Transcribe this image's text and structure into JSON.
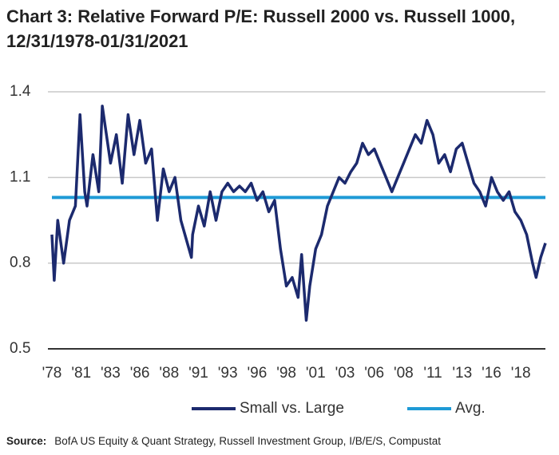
{
  "chart_data": {
    "type": "line",
    "title": [
      "Chart 3: Relative Forward P/E: Russell 2000 vs. Russell 1000,",
      "12/31/1978-01/31/2021"
    ],
    "xlim": [
      1979,
      2021.1
    ],
    "xticks": [
      {
        "value": 1979,
        "label": "'78"
      },
      {
        "value": 1981.5,
        "label": "'81"
      },
      {
        "value": 1984,
        "label": "'83"
      },
      {
        "value": 1986.5,
        "label": "'86"
      },
      {
        "value": 1989,
        "label": "'88"
      },
      {
        "value": 1991.5,
        "label": "'91"
      },
      {
        "value": 1994,
        "label": "'93"
      },
      {
        "value": 1996.5,
        "label": "'96"
      },
      {
        "value": 1999,
        "label": "'98"
      },
      {
        "value": 2001.5,
        "label": "'01"
      },
      {
        "value": 2004,
        "label": "'03"
      },
      {
        "value": 2006.5,
        "label": "'06"
      },
      {
        "value": 2009,
        "label": "'08"
      },
      {
        "value": 2011.5,
        "label": "'11"
      },
      {
        "value": 2014,
        "label": "'13"
      },
      {
        "value": 2016.5,
        "label": "'16"
      },
      {
        "value": 2019,
        "label": "'18"
      }
    ],
    "ylim": [
      0.5,
      1.4
    ],
    "yticks": [
      0.5,
      0.8,
      1.1,
      1.4
    ],
    "grid": true,
    "series": [
      {
        "name": "Small vs. Large",
        "color": "#1c2a6e",
        "x": [
          1979,
          1979.2,
          1979.5,
          1980,
          1980.5,
          1981,
          1981.4,
          1981.8,
          1982,
          1982.5,
          1983,
          1983.3,
          1984,
          1984.5,
          1985,
          1985.5,
          1986,
          1986.5,
          1987,
          1987.5,
          1988,
          1988.5,
          1989,
          1989.5,
          1990,
          1990.9,
          1991,
          1991.5,
          1992,
          1992.5,
          1993,
          1993.5,
          1994,
          1994.5,
          1995,
          1995.5,
          1996,
          1996.5,
          1997,
          1997.5,
          1998,
          1998.5,
          1999,
          1999.5,
          2000,
          2000.3,
          2000.7,
          2001,
          2001.5,
          2002,
          2002.5,
          2003,
          2003.5,
          2004,
          2004.5,
          2005,
          2005.5,
          2006,
          2006.5,
          2007,
          2007.5,
          2008,
          2008.5,
          2009,
          2009.5,
          2010,
          2010.5,
          2011,
          2011.5,
          2012,
          2012.5,
          2013,
          2013.5,
          2014,
          2014.5,
          2015,
          2015.5,
          2016,
          2016.5,
          2017,
          2017.5,
          2018,
          2018.5,
          2019,
          2019.5,
          2020,
          2020.3,
          2020.7,
          2021.1
        ],
        "values": [
          0.9,
          0.74,
          0.95,
          0.8,
          0.95,
          1.0,
          1.32,
          1.05,
          1.0,
          1.18,
          1.05,
          1.35,
          1.15,
          1.25,
          1.08,
          1.32,
          1.18,
          1.3,
          1.15,
          1.2,
          0.95,
          1.13,
          1.05,
          1.1,
          0.95,
          0.82,
          0.9,
          1.0,
          0.93,
          1.05,
          0.95,
          1.05,
          1.08,
          1.05,
          1.07,
          1.05,
          1.08,
          1.02,
          1.05,
          0.98,
          1.02,
          0.85,
          0.72,
          0.75,
          0.68,
          0.83,
          0.6,
          0.72,
          0.85,
          0.9,
          1.0,
          1.05,
          1.1,
          1.08,
          1.12,
          1.15,
          1.22,
          1.18,
          1.2,
          1.15,
          1.1,
          1.05,
          1.1,
          1.15,
          1.2,
          1.25,
          1.22,
          1.3,
          1.25,
          1.15,
          1.18,
          1.12,
          1.2,
          1.22,
          1.15,
          1.08,
          1.05,
          1.0,
          1.1,
          1.05,
          1.02,
          1.05,
          0.98,
          0.95,
          0.9,
          0.8,
          0.75,
          0.82,
          0.87
        ]
      },
      {
        "name": "Avg.",
        "color": "#1e9ad6",
        "x": [
          1979,
          2021.1
        ],
        "values": [
          1.03,
          1.03
        ]
      }
    ],
    "source": {
      "label": "Source:",
      "text": "BofA US Equity & Quant Strategy, Russell Investment Group, I/B/E/S, Compustat"
    }
  }
}
